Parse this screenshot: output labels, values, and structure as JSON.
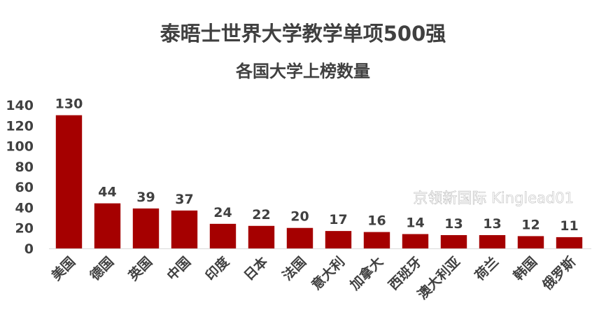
{
  "chart_data": {
    "type": "bar",
    "title": "泰晤士世界大学教学单项500强",
    "subtitle": "各国大学上榜数量",
    "xlabel": "",
    "ylabel": "",
    "categories": [
      "美国",
      "德国",
      "英国",
      "中国",
      "印度",
      "日本",
      "法国",
      "意大利",
      "加拿大",
      "西班牙",
      "澳大利亚",
      "荷兰",
      "韩国",
      "俄罗斯"
    ],
    "values": [
      130,
      44,
      39,
      37,
      24,
      22,
      20,
      17,
      16,
      14,
      13,
      13,
      12,
      11
    ],
    "ylim": [
      0,
      140
    ],
    "yticks": [
      0,
      20,
      40,
      60,
      80,
      100,
      120,
      140
    ],
    "grid": false,
    "legend": "none",
    "bar_color": "#A50000",
    "watermark": "京领新国际 Kinglead01"
  }
}
